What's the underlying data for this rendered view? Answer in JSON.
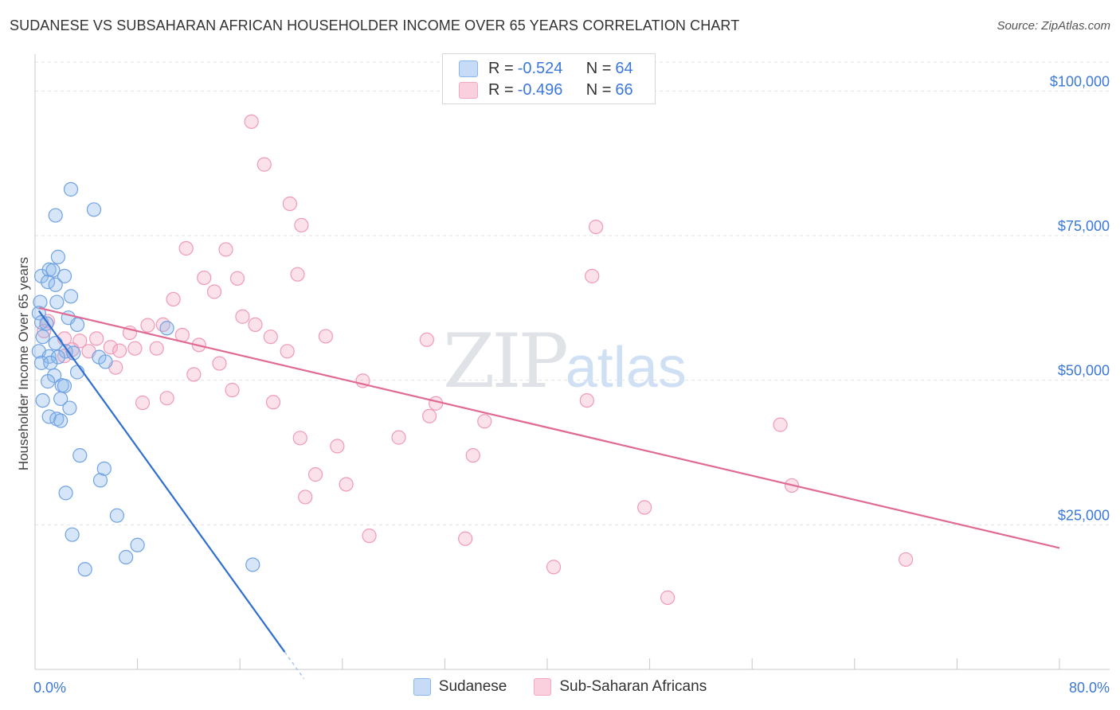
{
  "header": {
    "title": "SUDANESE VS SUBSAHARAN AFRICAN HOUSEHOLDER INCOME OVER 65 YEARS CORRELATION CHART",
    "source": "Source: ZipAtlas.com"
  },
  "watermark": {
    "zip": "ZIP",
    "atlas": "atlas"
  },
  "legend": {
    "rows": [
      {
        "r_label": "R =",
        "r_value": "-0.524",
        "n_label": "N =",
        "n_value": "64"
      },
      {
        "r_label": "R =",
        "r_value": "-0.496",
        "n_label": "N =",
        "n_value": "66"
      }
    ]
  },
  "bottom_legend": {
    "s1": "Sudanese",
    "s2": "Sub-Saharan Africans"
  },
  "chart_data": {
    "type": "scatter",
    "title": "SUDANESE VS SUBSAHARAN AFRICAN HOUSEHOLDER INCOME OVER 65 YEARS CORRELATION CHART",
    "xlabel": "",
    "ylabel": "Householder Income Over 65 years",
    "xlim": [
      0,
      80
    ],
    "ylim": [
      0,
      105000
    ],
    "x_tick_labels": [
      "0.0%",
      "80.0%"
    ],
    "y_ticks": [
      25000,
      50000,
      75000,
      100000
    ],
    "y_tick_labels": [
      "$25,000",
      "$50,000",
      "$75,000",
      "$100,000"
    ],
    "grid": true,
    "legend_position": "top-center",
    "colors": {
      "Sudanese": "#8ab6ec",
      "Sub-Saharan Africans": "#f4a9c1",
      "blue_line": "#2f6fcf",
      "pink_line": "#e06a93"
    },
    "series": [
      {
        "name": "Sudanese",
        "r": -0.524,
        "n": 64,
        "trend": {
          "x": [
            0.3,
            19.5
          ],
          "y": [
            62000,
            3000
          ],
          "dashed_to_x": 21.0
        },
        "points": [
          [
            2.8,
            83000
          ],
          [
            4.6,
            79500
          ],
          [
            1.6,
            78500
          ],
          [
            1.8,
            71300
          ],
          [
            0.5,
            68000
          ],
          [
            1.1,
            69100
          ],
          [
            1.4,
            69000
          ],
          [
            2.3,
            68000
          ],
          [
            1.0,
            67000
          ],
          [
            1.6,
            66500
          ],
          [
            2.8,
            64500
          ],
          [
            0.4,
            63500
          ],
          [
            1.7,
            63500
          ],
          [
            0.3,
            61600
          ],
          [
            0.5,
            60000
          ],
          [
            0.9,
            59800
          ],
          [
            2.6,
            60800
          ],
          [
            3.3,
            59600
          ],
          [
            10.3,
            59000
          ],
          [
            0.6,
            57500
          ],
          [
            1.6,
            56400
          ],
          [
            0.3,
            55000
          ],
          [
            2.4,
            55000
          ],
          [
            3.0,
            54700
          ],
          [
            1.1,
            54100
          ],
          [
            1.8,
            54000
          ],
          [
            5.0,
            54000
          ],
          [
            0.5,
            53000
          ],
          [
            1.2,
            53000
          ],
          [
            5.5,
            53200
          ],
          [
            3.3,
            51400
          ],
          [
            1.5,
            50800
          ],
          [
            1.0,
            49800
          ],
          [
            2.1,
            49100
          ],
          [
            2.3,
            49000
          ],
          [
            0.6,
            46500
          ],
          [
            2.0,
            46800
          ],
          [
            2.7,
            45200
          ],
          [
            1.1,
            43700
          ],
          [
            1.7,
            43300
          ],
          [
            2.0,
            43000
          ],
          [
            3.5,
            37000
          ],
          [
            5.4,
            34700
          ],
          [
            5.1,
            32700
          ],
          [
            2.4,
            30500
          ],
          [
            6.4,
            26600
          ],
          [
            2.9,
            23300
          ],
          [
            8.0,
            21500
          ],
          [
            7.1,
            19400
          ],
          [
            3.9,
            17300
          ],
          [
            17.0,
            18100
          ]
        ]
      },
      {
        "name": "Sub-Saharan Africans",
        "r": -0.496,
        "n": 66,
        "trend": {
          "x": [
            0.3,
            80.0
          ],
          "y": [
            62500,
            21000
          ]
        },
        "points": [
          [
            16.9,
            94700
          ],
          [
            17.9,
            87300
          ],
          [
            19.9,
            80500
          ],
          [
            20.8,
            76800
          ],
          [
            43.8,
            76500
          ],
          [
            11.8,
            72800
          ],
          [
            14.9,
            72600
          ],
          [
            20.5,
            68300
          ],
          [
            43.5,
            68000
          ],
          [
            13.2,
            67700
          ],
          [
            15.8,
            67600
          ],
          [
            14.0,
            65300
          ],
          [
            10.8,
            64000
          ],
          [
            16.2,
            61000
          ],
          [
            1.0,
            60200
          ],
          [
            0.7,
            58500
          ],
          [
            8.8,
            59500
          ],
          [
            10.0,
            59600
          ],
          [
            17.2,
            59600
          ],
          [
            2.3,
            57200
          ],
          [
            4.8,
            57200
          ],
          [
            7.4,
            58200
          ],
          [
            11.5,
            57800
          ],
          [
            18.4,
            57500
          ],
          [
            22.7,
            57600
          ],
          [
            30.6,
            57000
          ],
          [
            3.5,
            56800
          ],
          [
            5.9,
            55700
          ],
          [
            7.8,
            55500
          ],
          [
            9.5,
            55500
          ],
          [
            12.8,
            56100
          ],
          [
            2.9,
            55300
          ],
          [
            4.2,
            55000
          ],
          [
            6.6,
            55100
          ],
          [
            19.7,
            55000
          ],
          [
            2.3,
            54200
          ],
          [
            14.4,
            52900
          ],
          [
            6.3,
            52200
          ],
          [
            12.4,
            51000
          ],
          [
            25.6,
            49900
          ],
          [
            15.4,
            48300
          ],
          [
            10.3,
            46900
          ],
          [
            8.4,
            46100
          ],
          [
            18.6,
            46200
          ],
          [
            43.1,
            46500
          ],
          [
            31.3,
            46000
          ],
          [
            30.8,
            43800
          ],
          [
            35.1,
            42900
          ],
          [
            58.2,
            42300
          ],
          [
            20.7,
            40000
          ],
          [
            28.4,
            40100
          ],
          [
            23.6,
            38600
          ],
          [
            34.2,
            37000
          ],
          [
            21.9,
            33700
          ],
          [
            24.3,
            32000
          ],
          [
            59.1,
            31800
          ],
          [
            21.1,
            29800
          ],
          [
            47.6,
            28000
          ],
          [
            26.1,
            23100
          ],
          [
            33.6,
            22600
          ],
          [
            68.0,
            19000
          ],
          [
            40.5,
            17700
          ],
          [
            49.4,
            12400
          ]
        ]
      }
    ]
  }
}
